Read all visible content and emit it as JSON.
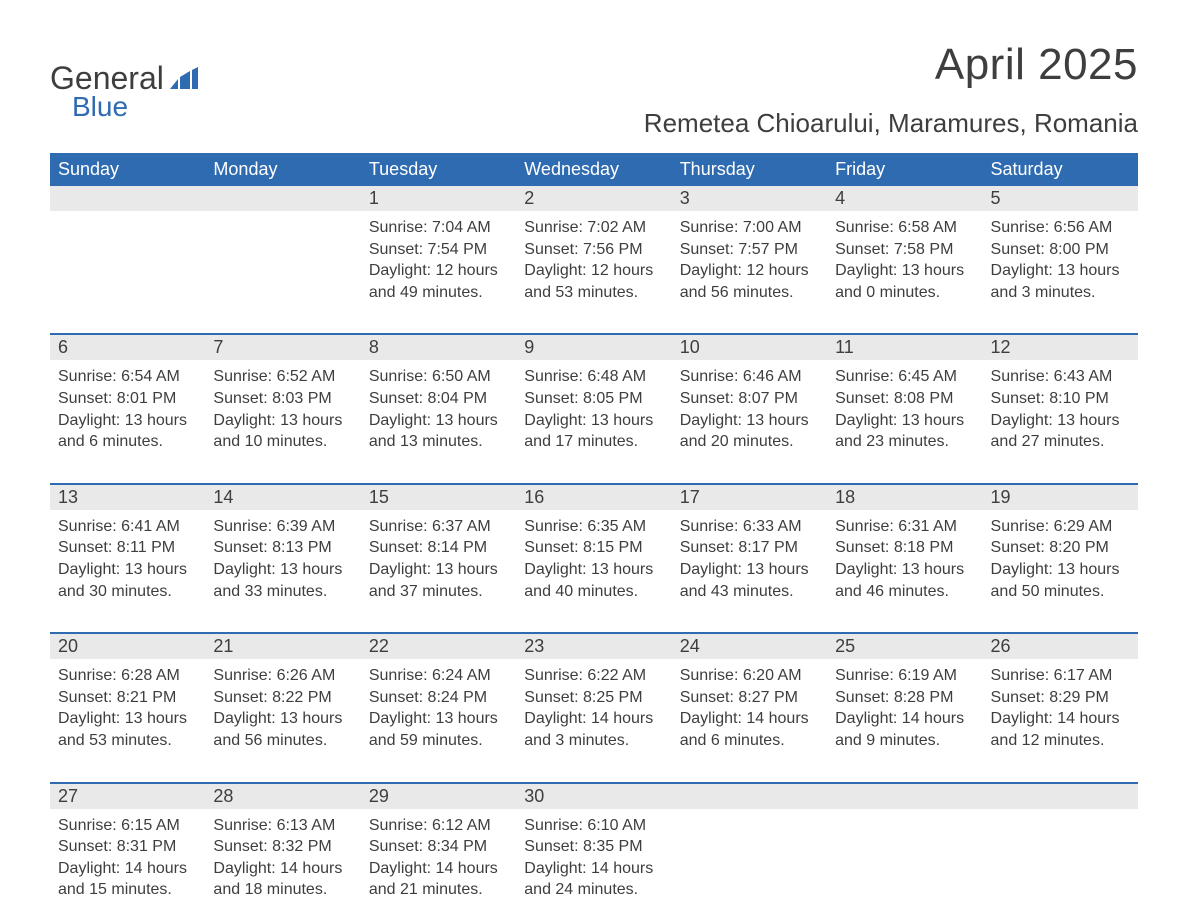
{
  "logo": {
    "general": "General",
    "blue": "Blue"
  },
  "header": {
    "month_title": "April 2025",
    "location": "Remetea Chioarului, Maramures, Romania"
  },
  "calendar": {
    "dow": [
      "Sunday",
      "Monday",
      "Tuesday",
      "Wednesday",
      "Thursday",
      "Friday",
      "Saturday"
    ],
    "header_bg": "#2f6bb1",
    "header_fg": "#ffffff",
    "daynum_bg": "#e9e9e9",
    "sep_color": "#2f6bb1",
    "text_color": "#3e3e3e",
    "weeks": [
      [
        null,
        null,
        {
          "n": "1",
          "sr": "Sunrise: 7:04 AM",
          "ss": "Sunset: 7:54 PM",
          "dl": "Daylight: 12 hours and 49 minutes."
        },
        {
          "n": "2",
          "sr": "Sunrise: 7:02 AM",
          "ss": "Sunset: 7:56 PM",
          "dl": "Daylight: 12 hours and 53 minutes."
        },
        {
          "n": "3",
          "sr": "Sunrise: 7:00 AM",
          "ss": "Sunset: 7:57 PM",
          "dl": "Daylight: 12 hours and 56 minutes."
        },
        {
          "n": "4",
          "sr": "Sunrise: 6:58 AM",
          "ss": "Sunset: 7:58 PM",
          "dl": "Daylight: 13 hours and 0 minutes."
        },
        {
          "n": "5",
          "sr": "Sunrise: 6:56 AM",
          "ss": "Sunset: 8:00 PM",
          "dl": "Daylight: 13 hours and 3 minutes."
        }
      ],
      [
        {
          "n": "6",
          "sr": "Sunrise: 6:54 AM",
          "ss": "Sunset: 8:01 PM",
          "dl": "Daylight: 13 hours and 6 minutes."
        },
        {
          "n": "7",
          "sr": "Sunrise: 6:52 AM",
          "ss": "Sunset: 8:03 PM",
          "dl": "Daylight: 13 hours and 10 minutes."
        },
        {
          "n": "8",
          "sr": "Sunrise: 6:50 AM",
          "ss": "Sunset: 8:04 PM",
          "dl": "Daylight: 13 hours and 13 minutes."
        },
        {
          "n": "9",
          "sr": "Sunrise: 6:48 AM",
          "ss": "Sunset: 8:05 PM",
          "dl": "Daylight: 13 hours and 17 minutes."
        },
        {
          "n": "10",
          "sr": "Sunrise: 6:46 AM",
          "ss": "Sunset: 8:07 PM",
          "dl": "Daylight: 13 hours and 20 minutes."
        },
        {
          "n": "11",
          "sr": "Sunrise: 6:45 AM",
          "ss": "Sunset: 8:08 PM",
          "dl": "Daylight: 13 hours and 23 minutes."
        },
        {
          "n": "12",
          "sr": "Sunrise: 6:43 AM",
          "ss": "Sunset: 8:10 PM",
          "dl": "Daylight: 13 hours and 27 minutes."
        }
      ],
      [
        {
          "n": "13",
          "sr": "Sunrise: 6:41 AM",
          "ss": "Sunset: 8:11 PM",
          "dl": "Daylight: 13 hours and 30 minutes."
        },
        {
          "n": "14",
          "sr": "Sunrise: 6:39 AM",
          "ss": "Sunset: 8:13 PM",
          "dl": "Daylight: 13 hours and 33 minutes."
        },
        {
          "n": "15",
          "sr": "Sunrise: 6:37 AM",
          "ss": "Sunset: 8:14 PM",
          "dl": "Daylight: 13 hours and 37 minutes."
        },
        {
          "n": "16",
          "sr": "Sunrise: 6:35 AM",
          "ss": "Sunset: 8:15 PM",
          "dl": "Daylight: 13 hours and 40 minutes."
        },
        {
          "n": "17",
          "sr": "Sunrise: 6:33 AM",
          "ss": "Sunset: 8:17 PM",
          "dl": "Daylight: 13 hours and 43 minutes."
        },
        {
          "n": "18",
          "sr": "Sunrise: 6:31 AM",
          "ss": "Sunset: 8:18 PM",
          "dl": "Daylight: 13 hours and 46 minutes."
        },
        {
          "n": "19",
          "sr": "Sunrise: 6:29 AM",
          "ss": "Sunset: 8:20 PM",
          "dl": "Daylight: 13 hours and 50 minutes."
        }
      ],
      [
        {
          "n": "20",
          "sr": "Sunrise: 6:28 AM",
          "ss": "Sunset: 8:21 PM",
          "dl": "Daylight: 13 hours and 53 minutes."
        },
        {
          "n": "21",
          "sr": "Sunrise: 6:26 AM",
          "ss": "Sunset: 8:22 PM",
          "dl": "Daylight: 13 hours and 56 minutes."
        },
        {
          "n": "22",
          "sr": "Sunrise: 6:24 AM",
          "ss": "Sunset: 8:24 PM",
          "dl": "Daylight: 13 hours and 59 minutes."
        },
        {
          "n": "23",
          "sr": "Sunrise: 6:22 AM",
          "ss": "Sunset: 8:25 PM",
          "dl": "Daylight: 14 hours and 3 minutes."
        },
        {
          "n": "24",
          "sr": "Sunrise: 6:20 AM",
          "ss": "Sunset: 8:27 PM",
          "dl": "Daylight: 14 hours and 6 minutes."
        },
        {
          "n": "25",
          "sr": "Sunrise: 6:19 AM",
          "ss": "Sunset: 8:28 PM",
          "dl": "Daylight: 14 hours and 9 minutes."
        },
        {
          "n": "26",
          "sr": "Sunrise: 6:17 AM",
          "ss": "Sunset: 8:29 PM",
          "dl": "Daylight: 14 hours and 12 minutes."
        }
      ],
      [
        {
          "n": "27",
          "sr": "Sunrise: 6:15 AM",
          "ss": "Sunset: 8:31 PM",
          "dl": "Daylight: 14 hours and 15 minutes."
        },
        {
          "n": "28",
          "sr": "Sunrise: 6:13 AM",
          "ss": "Sunset: 8:32 PM",
          "dl": "Daylight: 14 hours and 18 minutes."
        },
        {
          "n": "29",
          "sr": "Sunrise: 6:12 AM",
          "ss": "Sunset: 8:34 PM",
          "dl": "Daylight: 14 hours and 21 minutes."
        },
        {
          "n": "30",
          "sr": "Sunrise: 6:10 AM",
          "ss": "Sunset: 8:35 PM",
          "dl": "Daylight: 14 hours and 24 minutes."
        },
        null,
        null,
        null
      ]
    ]
  }
}
